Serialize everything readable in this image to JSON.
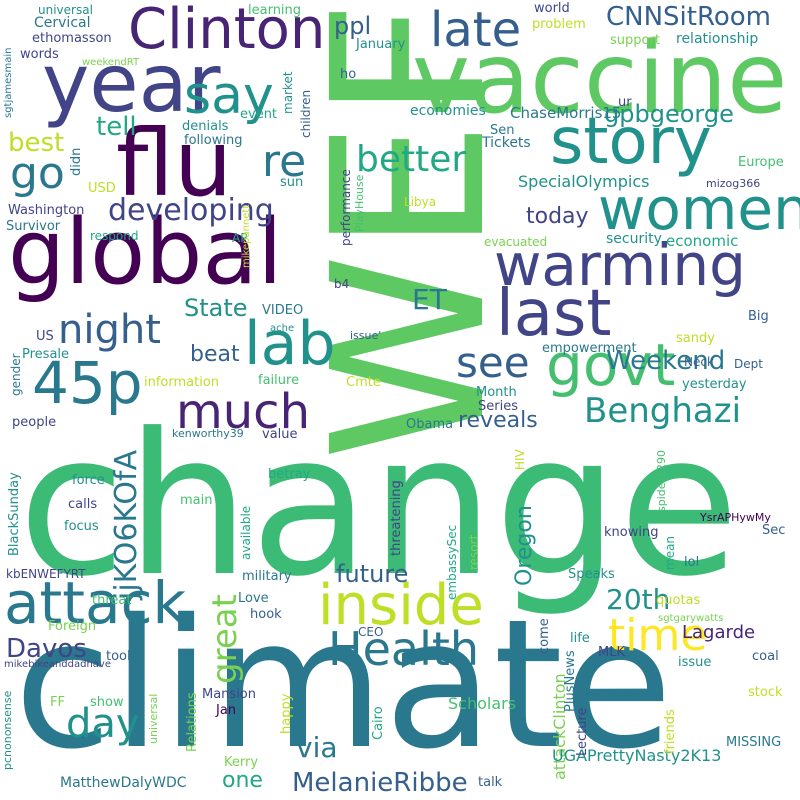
{
  "colors": {
    "background": "#ffffff",
    "palette": [
      "#440154",
      "#482475",
      "#414487",
      "#355f8d",
      "#2a788e",
      "#21918c",
      "#22a884",
      "#44bf70",
      "#7ad151",
      "#bddf26",
      "#fde725"
    ]
  },
  "words": [
    {
      "text": "change"
    },
    {
      "text": "climate"
    },
    {
      "text": "WEF"
    },
    {
      "text": "vaccine"
    },
    {
      "text": "global"
    },
    {
      "text": "flu"
    },
    {
      "text": "year"
    },
    {
      "text": "Clinton"
    },
    {
      "text": "warming"
    },
    {
      "text": "story"
    },
    {
      "text": "women"
    },
    {
      "text": "attack"
    },
    {
      "text": "inside"
    },
    {
      "text": "last"
    },
    {
      "text": "45p"
    },
    {
      "text": "govt"
    },
    {
      "text": "lab"
    },
    {
      "text": "Health"
    },
    {
      "text": "much"
    },
    {
      "text": "say"
    },
    {
      "text": "late"
    },
    {
      "text": "night"
    },
    {
      "text": "time"
    },
    {
      "text": "go"
    },
    {
      "text": "re"
    },
    {
      "text": "better"
    },
    {
      "text": "see"
    },
    {
      "text": "Benghazi"
    },
    {
      "text": "day"
    },
    {
      "text": "CNNSitRoom"
    },
    {
      "text": "developing"
    },
    {
      "text": "great"
    },
    {
      "text": "jjKO6KOfA"
    },
    {
      "text": "MelanieRibbe"
    },
    {
      "text": "Weekend"
    },
    {
      "text": "ET"
    },
    {
      "text": "attackClinton"
    },
    {
      "text": "20th"
    },
    {
      "text": "Davos"
    },
    {
      "text": "tell"
    },
    {
      "text": "best"
    },
    {
      "text": "ppl"
    },
    {
      "text": "gpbgeorge"
    },
    {
      "text": "beat"
    },
    {
      "text": "State"
    },
    {
      "text": "reveals"
    },
    {
      "text": "future"
    },
    {
      "text": "Oregon"
    },
    {
      "text": "today"
    },
    {
      "text": "via"
    },
    {
      "text": "one"
    },
    {
      "text": "Lagarde"
    },
    {
      "text": "UGAPrettyNasty2K13"
    },
    {
      "text": "SpecialOlympics"
    },
    {
      "text": "ChaseMorris15"
    },
    {
      "text": "economies"
    },
    {
      "text": "economic"
    },
    {
      "text": "security"
    },
    {
      "text": "Tickets"
    },
    {
      "text": "Sen"
    },
    {
      "text": "relationship"
    },
    {
      "text": "support"
    },
    {
      "text": "world"
    },
    {
      "text": "problem"
    },
    {
      "text": "January"
    },
    {
      "text": "Cervical"
    },
    {
      "text": "ethomasson"
    },
    {
      "text": "words"
    },
    {
      "text": "universal"
    },
    {
      "text": "learning"
    },
    {
      "text": "event"
    },
    {
      "text": "market"
    },
    {
      "text": "children"
    },
    {
      "text": "denials"
    },
    {
      "text": "following"
    },
    {
      "text": "didn"
    },
    {
      "text": "USD"
    },
    {
      "text": "sun"
    },
    {
      "text": "Washington"
    },
    {
      "text": "Survivor"
    },
    {
      "text": "respond"
    },
    {
      "text": "AP"
    },
    {
      "text": "Libya"
    },
    {
      "text": "evacuated"
    },
    {
      "text": "Europe"
    },
    {
      "text": "mizog366"
    },
    {
      "text": "ho"
    },
    {
      "text": "ur"
    },
    {
      "text": "sgtjamesmain"
    },
    {
      "text": "weekendRT"
    },
    {
      "text": "PlayHouse"
    },
    {
      "text": "performance"
    },
    {
      "text": "mikepannett"
    },
    {
      "text": "b4"
    },
    {
      "text": "US"
    },
    {
      "text": "VIDEO"
    },
    {
      "text": "Presale"
    },
    {
      "text": "sandy"
    },
    {
      "text": "Big"
    },
    {
      "text": "empowerment"
    },
    {
      "text": "Neck"
    },
    {
      "text": "Dept"
    },
    {
      "text": "yesterday"
    },
    {
      "text": "issue'"
    },
    {
      "text": "ache"
    },
    {
      "text": "gender"
    },
    {
      "text": "information"
    },
    {
      "text": "failure"
    },
    {
      "text": "Cmte"
    },
    {
      "text": "Month"
    },
    {
      "text": "Series"
    },
    {
      "text": "people"
    },
    {
      "text": "value"
    },
    {
      "text": "kenworthy39"
    },
    {
      "text": "Obama"
    },
    {
      "text": "HIV"
    },
    {
      "text": "spider1290"
    },
    {
      "text": "force"
    },
    {
      "text": "calls"
    },
    {
      "text": "focus"
    },
    {
      "text": "BlackSunday"
    },
    {
      "text": "main"
    },
    {
      "text": "betray"
    },
    {
      "text": "available"
    },
    {
      "text": "Relations"
    },
    {
      "text": "threatening"
    },
    {
      "text": "embassySec"
    },
    {
      "text": "resort"
    },
    {
      "text": "YsrAPHywMy"
    },
    {
      "text": "Sec"
    },
    {
      "text": "knowing"
    },
    {
      "text": "mean"
    },
    {
      "text": "lol"
    },
    {
      "text": "kbENWEFYRT"
    },
    {
      "text": "military"
    },
    {
      "text": "Speaks"
    },
    {
      "text": "Love"
    },
    {
      "text": "hook"
    },
    {
      "text": "threat"
    },
    {
      "text": "Foreign"
    },
    {
      "text": "quotas"
    },
    {
      "text": "sgtgarywatts"
    },
    {
      "text": "MLK"
    },
    {
      "text": "CEO"
    },
    {
      "text": "mikebikeanddadhave"
    },
    {
      "text": "come"
    },
    {
      "text": "life"
    },
    {
      "text": "coal"
    },
    {
      "text": "issue"
    },
    {
      "text": "tool"
    },
    {
      "text": "stock"
    },
    {
      "text": "Mansion"
    },
    {
      "text": "Jan"
    },
    {
      "text": "show"
    },
    {
      "text": "FF"
    },
    {
      "text": "pcnononsense"
    },
    {
      "text": "universal"
    },
    {
      "text": "happy"
    },
    {
      "text": "Scholars"
    },
    {
      "text": "PlusNews"
    },
    {
      "text": "Lecture"
    },
    {
      "text": "Kerry"
    },
    {
      "text": "Cairo"
    },
    {
      "text": "friends"
    },
    {
      "text": "MISSING"
    },
    {
      "text": "MatthewDalyWDC"
    },
    {
      "text": "talk"
    }
  ]
}
